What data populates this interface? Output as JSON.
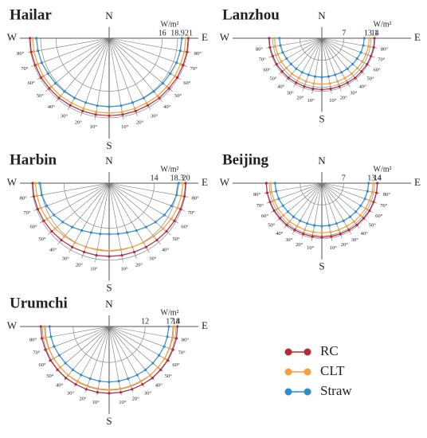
{
  "chart_data": [
    {
      "type": "polar",
      "title": "Hailar",
      "directions": [
        "N",
        "W",
        "E",
        "S"
      ],
      "unit": "W/m²",
      "x": [
        -90,
        -80,
        -70,
        -60,
        -50,
        -40,
        -30,
        -20,
        -10,
        0,
        10,
        20,
        30,
        40,
        50,
        60,
        70,
        80,
        90
      ],
      "xticks": [
        {
          "value": -80,
          "label": "80°"
        },
        {
          "value": -70,
          "label": "70°"
        },
        {
          "value": -60,
          "label": "60°"
        },
        {
          "value": -50,
          "label": "50°"
        },
        {
          "value": -40,
          "label": "40°"
        },
        {
          "value": -30,
          "label": "30°"
        },
        {
          "value": -20,
          "label": "20°"
        },
        {
          "value": -10,
          "label": "10°"
        },
        {
          "value": 10,
          "label": "10°"
        },
        {
          "value": 20,
          "label": "20°"
        },
        {
          "value": 30,
          "label": "30°"
        },
        {
          "value": 40,
          "label": "40°"
        },
        {
          "value": 50,
          "label": "50°"
        },
        {
          "value": 60,
          "label": "60°"
        },
        {
          "value": 70,
          "label": "70°"
        },
        {
          "value": 80,
          "label": "80°"
        }
      ],
      "rlim": [
        6,
        21
      ],
      "rticks": [
        16,
        18.9,
        21
      ],
      "series": [
        {
          "name": "RC",
          "color": "#b5293a",
          "values": [
            20.9,
            20.9,
            20.8,
            20.8,
            20.7,
            20.7,
            20.6,
            20.6,
            20.6,
            20.6,
            20.6,
            20.6,
            20.6,
            20.7,
            20.7,
            20.8,
            20.8,
            20.9,
            20.9
          ]
        },
        {
          "name": "CLT",
          "color": "#f5a13d",
          "values": [
            20.4,
            20.4,
            20.3,
            20.3,
            20.2,
            20.2,
            20.1,
            20.1,
            20.1,
            20.1,
            20.1,
            20.1,
            20.1,
            20.2,
            20.2,
            20.3,
            20.3,
            20.4,
            20.4
          ]
        },
        {
          "name": "Straw",
          "color": "#2f8ccf",
          "values": [
            19.7,
            19.6,
            19.5,
            19.3,
            19.2,
            19.1,
            19.0,
            18.9,
            18.9,
            18.9,
            18.9,
            18.9,
            19.0,
            19.1,
            19.2,
            19.3,
            19.5,
            19.6,
            19.7
          ]
        }
      ]
    },
    {
      "type": "polar",
      "title": "Lanzhou",
      "directions": [
        "N",
        "W",
        "E",
        "S"
      ],
      "unit": "W/m²",
      "x": [
        -90,
        -80,
        -70,
        -60,
        -50,
        -40,
        -30,
        -20,
        -10,
        0,
        10,
        20,
        30,
        40,
        50,
        60,
        70,
        80,
        90
      ],
      "xticks": [
        {
          "value": -80,
          "label": "80°"
        },
        {
          "value": -70,
          "label": "70°"
        },
        {
          "value": -60,
          "label": "60°"
        },
        {
          "value": -50,
          "label": "50°"
        },
        {
          "value": -40,
          "label": "40°"
        },
        {
          "value": -30,
          "label": "30°"
        },
        {
          "value": -20,
          "label": "20°"
        },
        {
          "value": -10,
          "label": "10°"
        },
        {
          "value": 10,
          "label": "10°"
        },
        {
          "value": 20,
          "label": "20°"
        },
        {
          "value": 30,
          "label": "30°"
        },
        {
          "value": 40,
          "label": "40°"
        },
        {
          "value": 50,
          "label": "50°"
        },
        {
          "value": 60,
          "label": "60°"
        },
        {
          "value": 70,
          "label": "70°"
        },
        {
          "value": 80,
          "label": "80°"
        }
      ],
      "rlim": [
        2,
        20
      ],
      "rticks": [
        7,
        13.1,
        14
      ],
      "series": [
        {
          "name": "RC",
          "color": "#b5293a",
          "values": [
            13.9,
            13.9,
            13.8,
            13.8,
            13.7,
            13.7,
            13.6,
            13.6,
            13.6,
            13.6,
            13.6,
            13.6,
            13.6,
            13.7,
            13.7,
            13.8,
            13.8,
            13.9,
            13.9
          ]
        },
        {
          "name": "CLT",
          "color": "#f5a13d",
          "values": [
            12.7,
            12.7,
            12.6,
            12.6,
            12.5,
            12.5,
            12.4,
            12.4,
            12.4,
            12.4,
            12.4,
            12.4,
            12.4,
            12.5,
            12.5,
            12.6,
            12.6,
            12.7,
            12.7
          ]
        },
        {
          "name": "Straw",
          "color": "#2f8ccf",
          "values": [
            11.6,
            11.5,
            11.4,
            11.2,
            11.1,
            11.0,
            10.9,
            10.8,
            10.8,
            10.8,
            10.8,
            10.8,
            10.9,
            11.0,
            11.1,
            11.2,
            11.4,
            11.5,
            11.6
          ]
        }
      ]
    },
    {
      "type": "polar",
      "title": "Harbin",
      "directions": [
        "N",
        "W",
        "E",
        "S"
      ],
      "unit": "W/m²",
      "x": [
        -90,
        -80,
        -70,
        -60,
        -50,
        -40,
        -30,
        -20,
        -10,
        0,
        10,
        20,
        30,
        40,
        50,
        60,
        70,
        80,
        90
      ],
      "xticks": [
        {
          "value": -80,
          "label": "80°"
        },
        {
          "value": -70,
          "label": "70°"
        },
        {
          "value": -60,
          "label": "60°"
        },
        {
          "value": -50,
          "label": "50°"
        },
        {
          "value": -40,
          "label": "40°"
        },
        {
          "value": -30,
          "label": "30°"
        },
        {
          "value": -20,
          "label": "20°"
        },
        {
          "value": -10,
          "label": "10°"
        },
        {
          "value": 10,
          "label": "10°"
        },
        {
          "value": 20,
          "label": "20°"
        },
        {
          "value": 30,
          "label": "30°"
        },
        {
          "value": 40,
          "label": "40°"
        },
        {
          "value": 50,
          "label": "50°"
        },
        {
          "value": 60,
          "label": "60°"
        },
        {
          "value": 70,
          "label": "70°"
        },
        {
          "value": 80,
          "label": "80°"
        }
      ],
      "rlim": [
        5.5,
        20.5
      ],
      "rticks": [
        14,
        18.3,
        20
      ],
      "series": [
        {
          "name": "RC",
          "color": "#b5293a",
          "values": [
            19.9,
            19.9,
            19.8,
            19.7,
            19.6,
            19.5,
            19.4,
            19.3,
            19.3,
            19.3,
            19.3,
            19.3,
            19.4,
            19.5,
            19.6,
            19.7,
            19.8,
            19.9,
            19.9
          ]
        },
        {
          "name": "CLT",
          "color": "#f5a13d",
          "values": [
            19.4,
            19.3,
            19.2,
            19.0,
            18.8,
            18.6,
            18.4,
            18.3,
            18.2,
            18.2,
            18.2,
            18.3,
            18.4,
            18.6,
            18.8,
            19.0,
            19.2,
            19.3,
            19.4
          ]
        },
        {
          "name": "Straw",
          "color": "#2f8ccf",
          "values": [
            18.6,
            18.4,
            18.0,
            17.5,
            16.9,
            16.3,
            15.8,
            15.4,
            15.2,
            15.1,
            15.2,
            15.4,
            15.8,
            16.3,
            16.9,
            17.5,
            18.0,
            18.4,
            18.6
          ]
        }
      ]
    },
    {
      "type": "polar",
      "title": "Beijing",
      "directions": [
        "N",
        "W",
        "E",
        "S"
      ],
      "unit": "W/m²",
      "x": [
        -90,
        -80,
        -70,
        -60,
        -50,
        -40,
        -30,
        -20,
        -10,
        0,
        10,
        20,
        30,
        40,
        50,
        60,
        70,
        80,
        90
      ],
      "xticks": [
        {
          "value": -80,
          "label": "80°"
        },
        {
          "value": -70,
          "label": "70°"
        },
        {
          "value": -60,
          "label": "60°"
        },
        {
          "value": -50,
          "label": "50°"
        },
        {
          "value": -40,
          "label": "40°"
        },
        {
          "value": -30,
          "label": "30°"
        },
        {
          "value": -20,
          "label": "20°"
        },
        {
          "value": -10,
          "label": "10°"
        },
        {
          "value": 10,
          "label": "10°"
        },
        {
          "value": 20,
          "label": "20°"
        },
        {
          "value": 30,
          "label": "30°"
        },
        {
          "value": 40,
          "label": "40°"
        },
        {
          "value": 50,
          "label": "50°"
        },
        {
          "value": 60,
          "label": "60°"
        },
        {
          "value": 70,
          "label": "70°"
        },
        {
          "value": 80,
          "label": "80°"
        }
      ],
      "rlim": [
        2.5,
        19
      ],
      "rticks": [
        7,
        13.4,
        14
      ],
      "series": [
        {
          "name": "RC",
          "color": "#b5293a",
          "values": [
            14.0,
            14.0,
            13.9,
            13.9,
            13.8,
            13.8,
            13.7,
            13.7,
            13.7,
            13.7,
            13.7,
            13.7,
            13.7,
            13.8,
            13.8,
            13.9,
            13.9,
            14.0,
            14.0
          ]
        },
        {
          "name": "CLT",
          "color": "#f5a13d",
          "values": [
            13.1,
            13.1,
            13.0,
            13.0,
            12.9,
            12.9,
            12.8,
            12.8,
            12.8,
            12.8,
            12.8,
            12.8,
            12.8,
            12.9,
            12.9,
            13.0,
            13.0,
            13.1,
            13.1
          ]
        },
        {
          "name": "Straw",
          "color": "#2f8ccf",
          "values": [
            12.2,
            12.1,
            12.0,
            11.8,
            11.7,
            11.6,
            11.5,
            11.4,
            11.4,
            11.4,
            11.4,
            11.4,
            11.5,
            11.6,
            11.7,
            11.8,
            12.0,
            12.1,
            12.2
          ]
        }
      ]
    },
    {
      "type": "polar",
      "title": "Urumchi",
      "directions": [
        "N",
        "W",
        "E",
        "S"
      ],
      "unit": "W/m²",
      "x": [
        -90,
        -80,
        -70,
        -60,
        -50,
        -40,
        -30,
        -20,
        -10,
        0,
        10,
        20,
        30,
        40,
        50,
        60,
        70,
        80,
        90
      ],
      "xticks": [
        {
          "value": -80,
          "label": "80°"
        },
        {
          "value": -70,
          "label": "70°"
        },
        {
          "value": -60,
          "label": "60°"
        },
        {
          "value": -50,
          "label": "50°"
        },
        {
          "value": -40,
          "label": "40°"
        },
        {
          "value": -30,
          "label": "30°"
        },
        {
          "value": -20,
          "label": "20°"
        },
        {
          "value": -10,
          "label": "10°"
        },
        {
          "value": 10,
          "label": "10°"
        },
        {
          "value": 20,
          "label": "20°"
        },
        {
          "value": 30,
          "label": "30°"
        },
        {
          "value": 40,
          "label": "40°"
        },
        {
          "value": 50,
          "label": "50°"
        },
        {
          "value": 60,
          "label": "60°"
        },
        {
          "value": 70,
          "label": "70°"
        },
        {
          "value": 80,
          "label": "80°"
        }
      ],
      "rlim": [
        5,
        20.5
      ],
      "rticks": [
        12,
        17.4,
        18
      ],
      "series": [
        {
          "name": "RC",
          "color": "#b5293a",
          "values": [
            18.3,
            18.3,
            18.2,
            18.2,
            18.1,
            18.1,
            18.0,
            18.0,
            18.0,
            18.0,
            18.0,
            18.0,
            18.0,
            18.1,
            18.1,
            18.2,
            18.2,
            18.3,
            18.3
          ]
        },
        {
          "name": "CLT",
          "color": "#f5a13d",
          "values": [
            17.6,
            17.6,
            17.5,
            17.5,
            17.4,
            17.4,
            17.3,
            17.3,
            17.3,
            17.3,
            17.3,
            17.3,
            17.3,
            17.4,
            17.4,
            17.5,
            17.5,
            17.6,
            17.6
          ]
        },
        {
          "name": "Straw",
          "color": "#2f8ccf",
          "values": [
            16.6,
            16.5,
            16.4,
            16.2,
            16.1,
            16.0,
            15.9,
            15.8,
            15.8,
            15.8,
            15.8,
            15.8,
            15.9,
            16.0,
            16.1,
            16.2,
            16.4,
            16.5,
            16.6
          ]
        }
      ]
    }
  ]
}
